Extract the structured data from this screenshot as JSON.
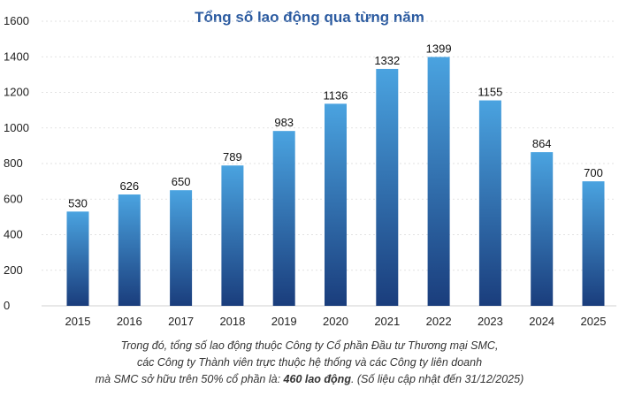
{
  "colors": {
    "title": "#2a5aa0",
    "bar_top": "#4aa3e0",
    "bar_bottom": "#1a3d7c",
    "grid": "#d9d9d9"
  },
  "chart_data": {
    "type": "bar",
    "title": "Tổng số lao động qua từng năm",
    "xlabel": "",
    "ylabel": "",
    "categories": [
      "2015",
      "2016",
      "2017",
      "2018",
      "2019",
      "2020",
      "2021",
      "2022",
      "2023",
      "2024",
      "2025"
    ],
    "values": [
      530,
      626,
      650,
      789,
      983,
      1136,
      1332,
      1399,
      1155,
      864,
      700
    ],
    "ylim": [
      0,
      1600
    ],
    "yticks": [
      0,
      200,
      400,
      600,
      800,
      1000,
      1200,
      1400,
      1600
    ],
    "grid": true,
    "data_labels": true
  },
  "footnote": {
    "line1": "Trong đó, tổng số lao động thuộc Công ty Cổ phần Đầu tư Thương mại SMC,",
    "line2": "các Công ty Thành viên trực thuộc hệ thống và các Công ty liên doanh",
    "line3_prefix": "mà SMC sở hữu trên 50% cổ phần là: ",
    "line3_bold": "460 lao động",
    "line3_suffix": ". (Số liệu cập nhật đến 31/12/2025)"
  }
}
